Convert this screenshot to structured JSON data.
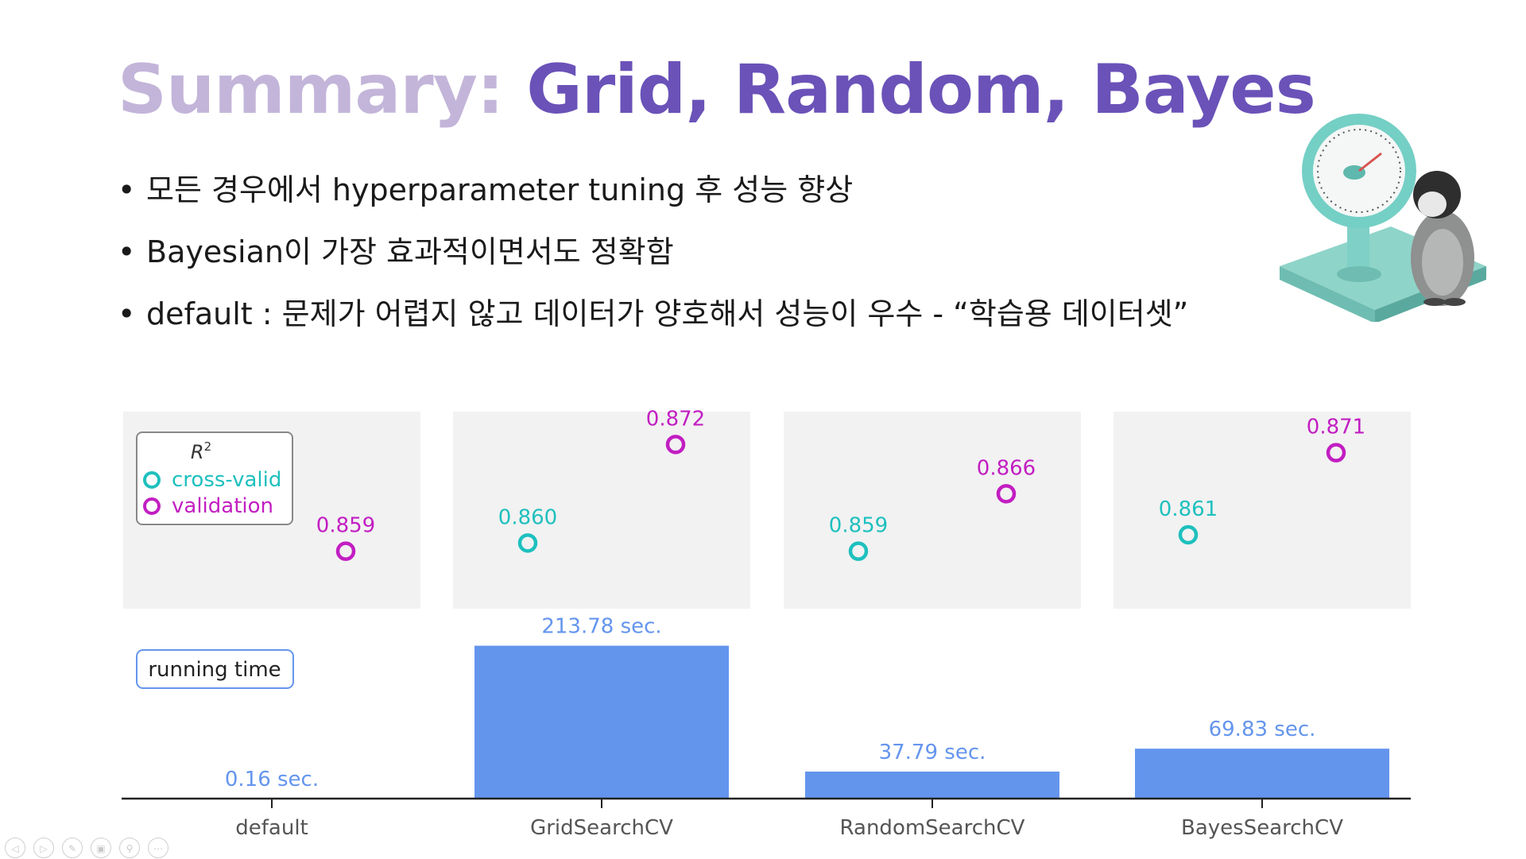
{
  "title": {
    "prefix": "Summary:",
    "main": "Grid, Random, Bayes"
  },
  "bullets": [
    "모든 경우에서 hyperparameter tuning 후 성능 향상",
    "Bayesian이 가장 효과적이면서도 정확함",
    "default : 문제가 어렵지 않고 데이터가 양호해서 성능이 우수 - “학습용 데이터셋”"
  ],
  "chart_data": {
    "type": "scatter+bar",
    "categories": [
      "default",
      "GridSearchCV",
      "RandomSearchCV",
      "BayesSearchCV"
    ],
    "r2_legend_title": "R",
    "r2_legend_title_sup": "2",
    "r2_series": [
      {
        "name": "cross-valid",
        "color": "#1ec0be",
        "values": [
          null,
          0.86,
          0.859,
          0.861
        ],
        "labels": [
          "",
          "0.860",
          "0.859",
          "0.861"
        ]
      },
      {
        "name": "validation",
        "color": "#c21ec2",
        "values": [
          0.859,
          0.872,
          0.866,
          0.871
        ],
        "labels": [
          "0.859",
          "0.872",
          "0.866",
          "0.871"
        ]
      }
    ],
    "r2_ylim": [
      0.852,
      0.876
    ],
    "time_legend": "running time",
    "time_values": [
      0.16,
      213.78,
      37.79,
      69.83
    ],
    "time_labels": [
      "0.16 sec.",
      "213.78 sec.",
      "37.79 sec.",
      "69.83 sec."
    ],
    "time_color": "#6495ed",
    "time_ylim": [
      0,
      250
    ]
  },
  "controls": [
    "prev-icon",
    "next-icon",
    "pen-icon",
    "slides-icon",
    "zoom-icon",
    "more-icon"
  ]
}
